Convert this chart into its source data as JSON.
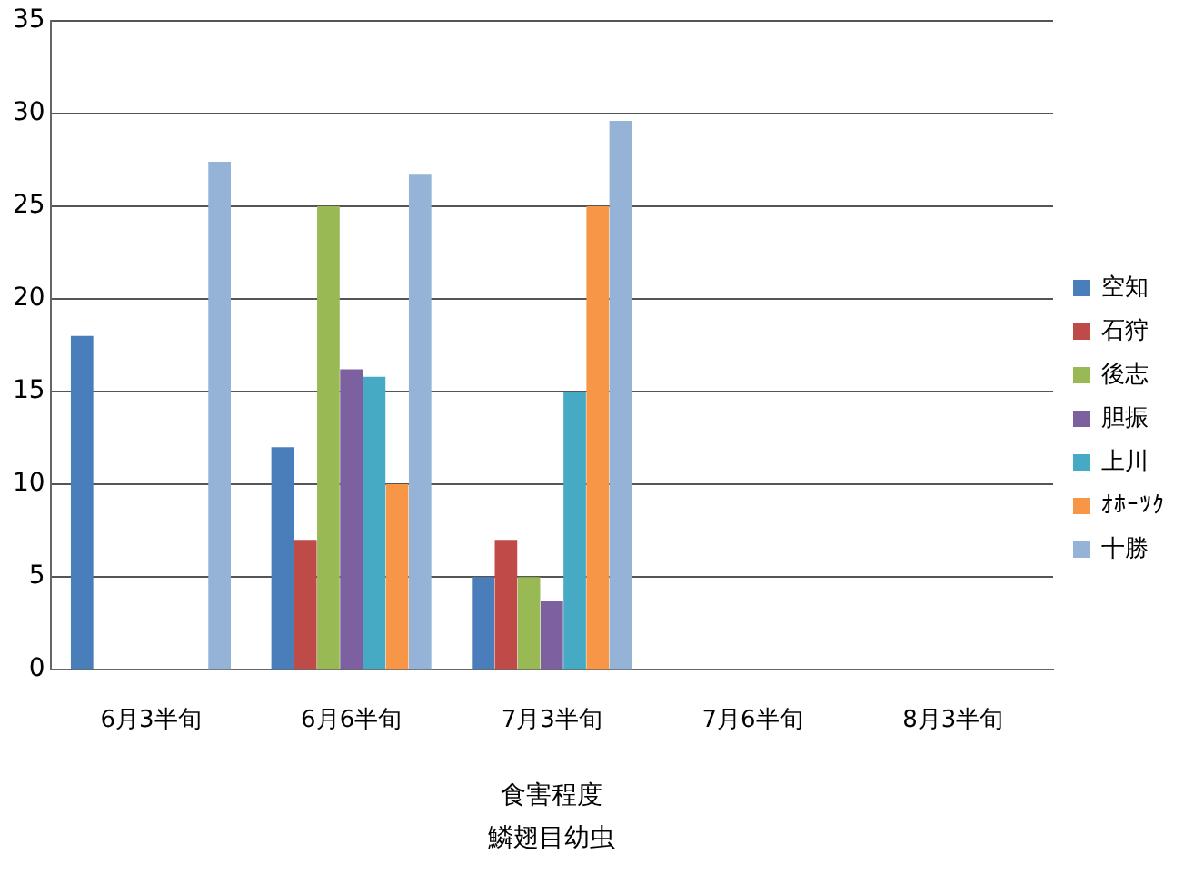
{
  "chart_data": {
    "type": "bar",
    "xlabel": "食害程度",
    "annotations": [
      "鱗翅目幼虫"
    ],
    "categories": [
      "6月3半旬",
      "6月6半旬",
      "7月3半旬",
      "7月6半旬",
      "8月3半旬"
    ],
    "series": [
      {
        "name": "空知",
        "color": "#4a7ebb",
        "values": [
          18,
          12,
          5,
          null,
          null
        ]
      },
      {
        "name": "石狩",
        "color": "#be4b48",
        "values": [
          null,
          7,
          7,
          null,
          null
        ]
      },
      {
        "name": "後志",
        "color": "#98b954",
        "values": [
          null,
          25,
          5,
          null,
          null
        ]
      },
      {
        "name": "胆振",
        "color": "#7d60a0",
        "values": [
          null,
          16.2,
          3.7,
          null,
          null
        ]
      },
      {
        "name": "上川",
        "color": "#46aac5",
        "values": [
          null,
          15.8,
          15,
          null,
          null
        ]
      },
      {
        "name": "ｵﾎｰﾂｸ",
        "color": "#f79646",
        "values": [
          null,
          10,
          25,
          null,
          null
        ]
      },
      {
        "name": "十勝",
        "color": "#95b3d7",
        "values": [
          27.4,
          26.7,
          29.6,
          null,
          null
        ]
      }
    ],
    "ylim": [
      0,
      35
    ],
    "yticks": [
      0,
      5,
      10,
      15,
      20,
      25,
      30,
      35
    ],
    "grid": "y",
    "legend": "right"
  }
}
